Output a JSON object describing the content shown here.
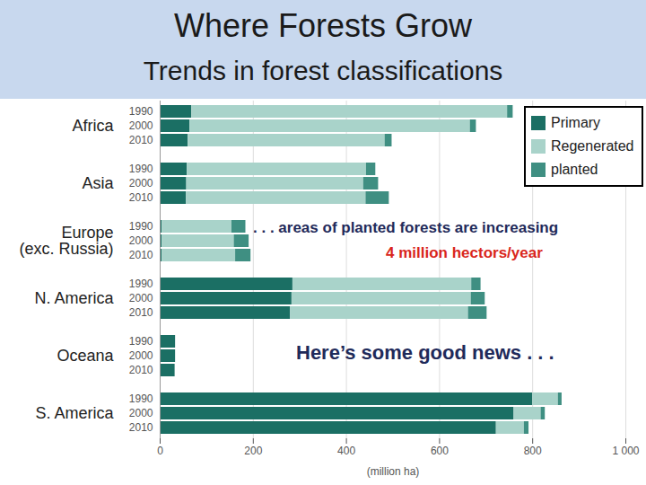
{
  "chart_data": {
    "type": "bar",
    "orientation": "horizontal",
    "stacked": true,
    "title": "Where Forests Grow",
    "subtitle": "Trends in forest classifications",
    "categories": [
      "Africa",
      "Asia",
      "Europe\n(exc. Russia)",
      "N. America",
      "Oceana",
      "S. America"
    ],
    "years": [
      "1990",
      "2000",
      "2010"
    ],
    "series": [
      {
        "name": "Primary",
        "color": "#1b6f64",
        "values": [
          [
            68,
            64,
            60
          ],
          [
            58,
            57,
            56
          ],
          [
            4,
            4,
            4
          ],
          [
            285,
            283,
            280
          ],
          [
            33,
            33,
            32
          ],
          [
            800,
            760,
            722
          ]
        ]
      },
      {
        "name": "Regenerated",
        "color": "#a9d3ca",
        "values": [
          [
            678,
            602,
            423
          ],
          [
            385,
            380,
            386
          ],
          [
            150,
            155,
            158
          ],
          [
            384,
            385,
            382
          ],
          [
            0,
            0,
            0
          ],
          [
            55,
            58,
            60
          ]
        ]
      },
      {
        "name": "planted",
        "color": "#3f8f82",
        "values": [
          [
            12,
            13,
            15
          ],
          [
            20,
            32,
            50
          ],
          [
            30,
            32,
            33
          ],
          [
            20,
            30,
            40
          ],
          [
            0,
            0,
            0
          ],
          [
            8,
            9,
            10
          ]
        ]
      }
    ],
    "xlim": [
      0,
      1000
    ],
    "xticks": [
      0,
      200,
      400,
      600,
      800,
      {
        "value": 1000,
        "label": "1 000"
      }
    ],
    "xlabel": "(million ha)",
    "legend": "top-right",
    "annotations": [
      ". . . areas of planted forests are increasing",
      "4 million hectors/year",
      "Here’s some good news . . ."
    ]
  }
}
